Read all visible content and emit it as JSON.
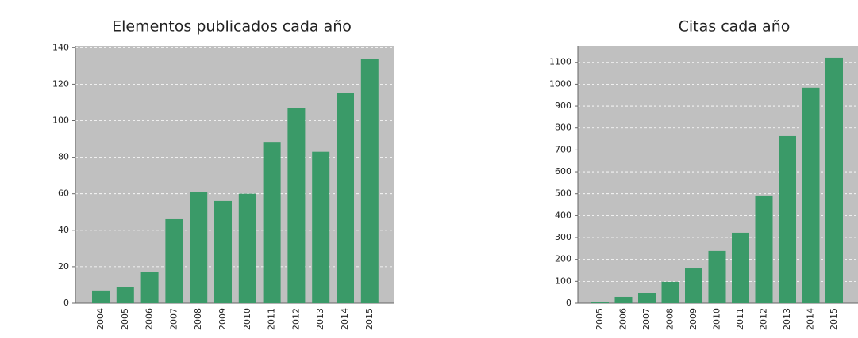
{
  "chart_data": [
    {
      "type": "bar",
      "title": "Elementos publicados cada año",
      "categories": [
        "2004",
        "2005",
        "2006",
        "2007",
        "2008",
        "2009",
        "2010",
        "2011",
        "2012",
        "2013",
        "2014",
        "2015"
      ],
      "values": [
        7,
        9,
        17,
        46,
        61,
        56,
        60,
        88,
        107,
        83,
        115,
        134
      ],
      "color": "#3a9a68",
      "ylim": [
        0,
        141
      ],
      "yticks": [
        0,
        20,
        40,
        60,
        80,
        100,
        120,
        140
      ],
      "grid": true
    },
    {
      "type": "bar",
      "title": "Citas cada año",
      "categories": [
        "2005",
        "2006",
        "2007",
        "2008",
        "2009",
        "2010",
        "2011",
        "2012",
        "2013",
        "2014",
        "2015"
      ],
      "values": [
        7,
        29,
        47,
        98,
        159,
        239,
        322,
        492,
        763,
        984,
        1121
      ],
      "color": "#3a9a68",
      "ylim": [
        0,
        1175
      ],
      "yticks": [
        0,
        100,
        200,
        300,
        400,
        500,
        600,
        700,
        800,
        900,
        1000,
        1100
      ],
      "grid": true
    }
  ]
}
